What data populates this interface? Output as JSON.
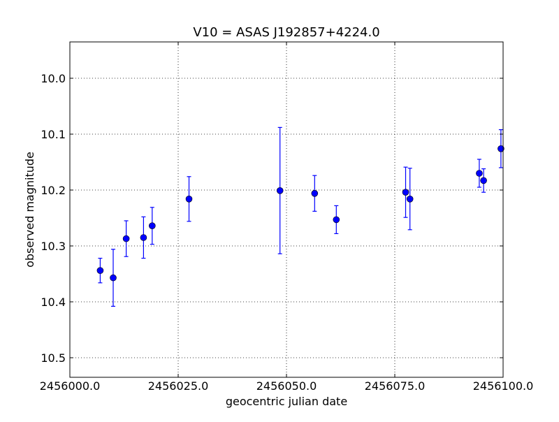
{
  "chart_data": {
    "type": "scatter",
    "title": "V10 = ASAS J192857+4224.0",
    "xlabel": "geocentric julian date",
    "ylabel": "observed magnitude",
    "xlim": [
      2456000.0,
      2456100.0
    ],
    "ylim": [
      10.535,
      9.935
    ],
    "y_inverted": true,
    "grid": true,
    "x_ticks": [
      2456000.0,
      2456025.0,
      2456050.0,
      2456075.0,
      2456100.0
    ],
    "x_tick_labels": [
      "2456000.0",
      "2456025.0",
      "2456050.0",
      "2456075.0",
      "2456100.0"
    ],
    "y_ticks": [
      10.0,
      10.1,
      10.2,
      10.3,
      10.4,
      10.5
    ],
    "y_tick_labels": [
      "10.0",
      "10.1",
      "10.2",
      "10.3",
      "10.4",
      "10.5"
    ],
    "marker_color": "#0000ff",
    "error_color": "#0000ff",
    "points": [
      {
        "x": 2456007.0,
        "y": 10.344,
        "err": 0.022
      },
      {
        "x": 2456010.0,
        "y": 10.357,
        "err": 0.051
      },
      {
        "x": 2456013.0,
        "y": 10.287,
        "err": 0.032
      },
      {
        "x": 2456017.0,
        "y": 10.285,
        "err": 0.037
      },
      {
        "x": 2456019.0,
        "y": 10.264,
        "err": 0.033
      },
      {
        "x": 2456027.5,
        "y": 10.216,
        "err": 0.04
      },
      {
        "x": 2456048.5,
        "y": 10.201,
        "err": 0.113
      },
      {
        "x": 2456056.5,
        "y": 10.206,
        "err": 0.032
      },
      {
        "x": 2456061.5,
        "y": 10.253,
        "err": 0.025
      },
      {
        "x": 2456077.5,
        "y": 10.204,
        "err": 0.045
      },
      {
        "x": 2456078.5,
        "y": 10.216,
        "err": 0.055
      },
      {
        "x": 2456094.5,
        "y": 10.17,
        "err": 0.025
      },
      {
        "x": 2456095.5,
        "y": 10.183,
        "err": 0.021
      },
      {
        "x": 2456099.5,
        "y": 10.126,
        "err": 0.034
      }
    ]
  }
}
